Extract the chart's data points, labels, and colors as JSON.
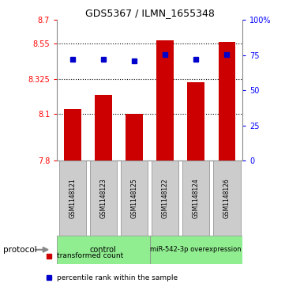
{
  "title": "GDS5367 / ILMN_1655348",
  "samples": [
    "GSM1148121",
    "GSM1148123",
    "GSM1148125",
    "GSM1148122",
    "GSM1148124",
    "GSM1148126"
  ],
  "red_values": [
    8.13,
    8.22,
    8.1,
    8.57,
    8.3,
    8.56
  ],
  "blue_values": [
    0.72,
    0.72,
    0.71,
    0.755,
    0.72,
    0.755
  ],
  "ylim_left": [
    7.8,
    8.7
  ],
  "ylim_right": [
    0.0,
    1.0
  ],
  "yticks_left": [
    7.8,
    8.1,
    8.325,
    8.55,
    8.7
  ],
  "ytick_labels_left": [
    "7.8",
    "8.1",
    "8.325",
    "8.55",
    "8.7"
  ],
  "yticks_right": [
    0.0,
    0.25,
    0.5,
    0.75,
    1.0
  ],
  "ytick_labels_right": [
    "0",
    "25",
    "50",
    "75",
    "100%"
  ],
  "hlines": [
    8.1,
    8.325,
    8.55
  ],
  "bar_color": "#CC0000",
  "dot_color": "#0000CC",
  "bar_width": 0.55,
  "control_color": "#90EE90",
  "sample_box_color": "#CCCCCC",
  "sample_box_edge": "#888888",
  "protocol_label": "protocol",
  "control_label": "control",
  "mir_label": "miR-542-3p overexpression",
  "legend_items": [
    {
      "label": "transformed count",
      "color": "#CC0000"
    },
    {
      "label": "percentile rank within the sample",
      "color": "#0000CC"
    }
  ],
  "background_color": "#ffffff"
}
